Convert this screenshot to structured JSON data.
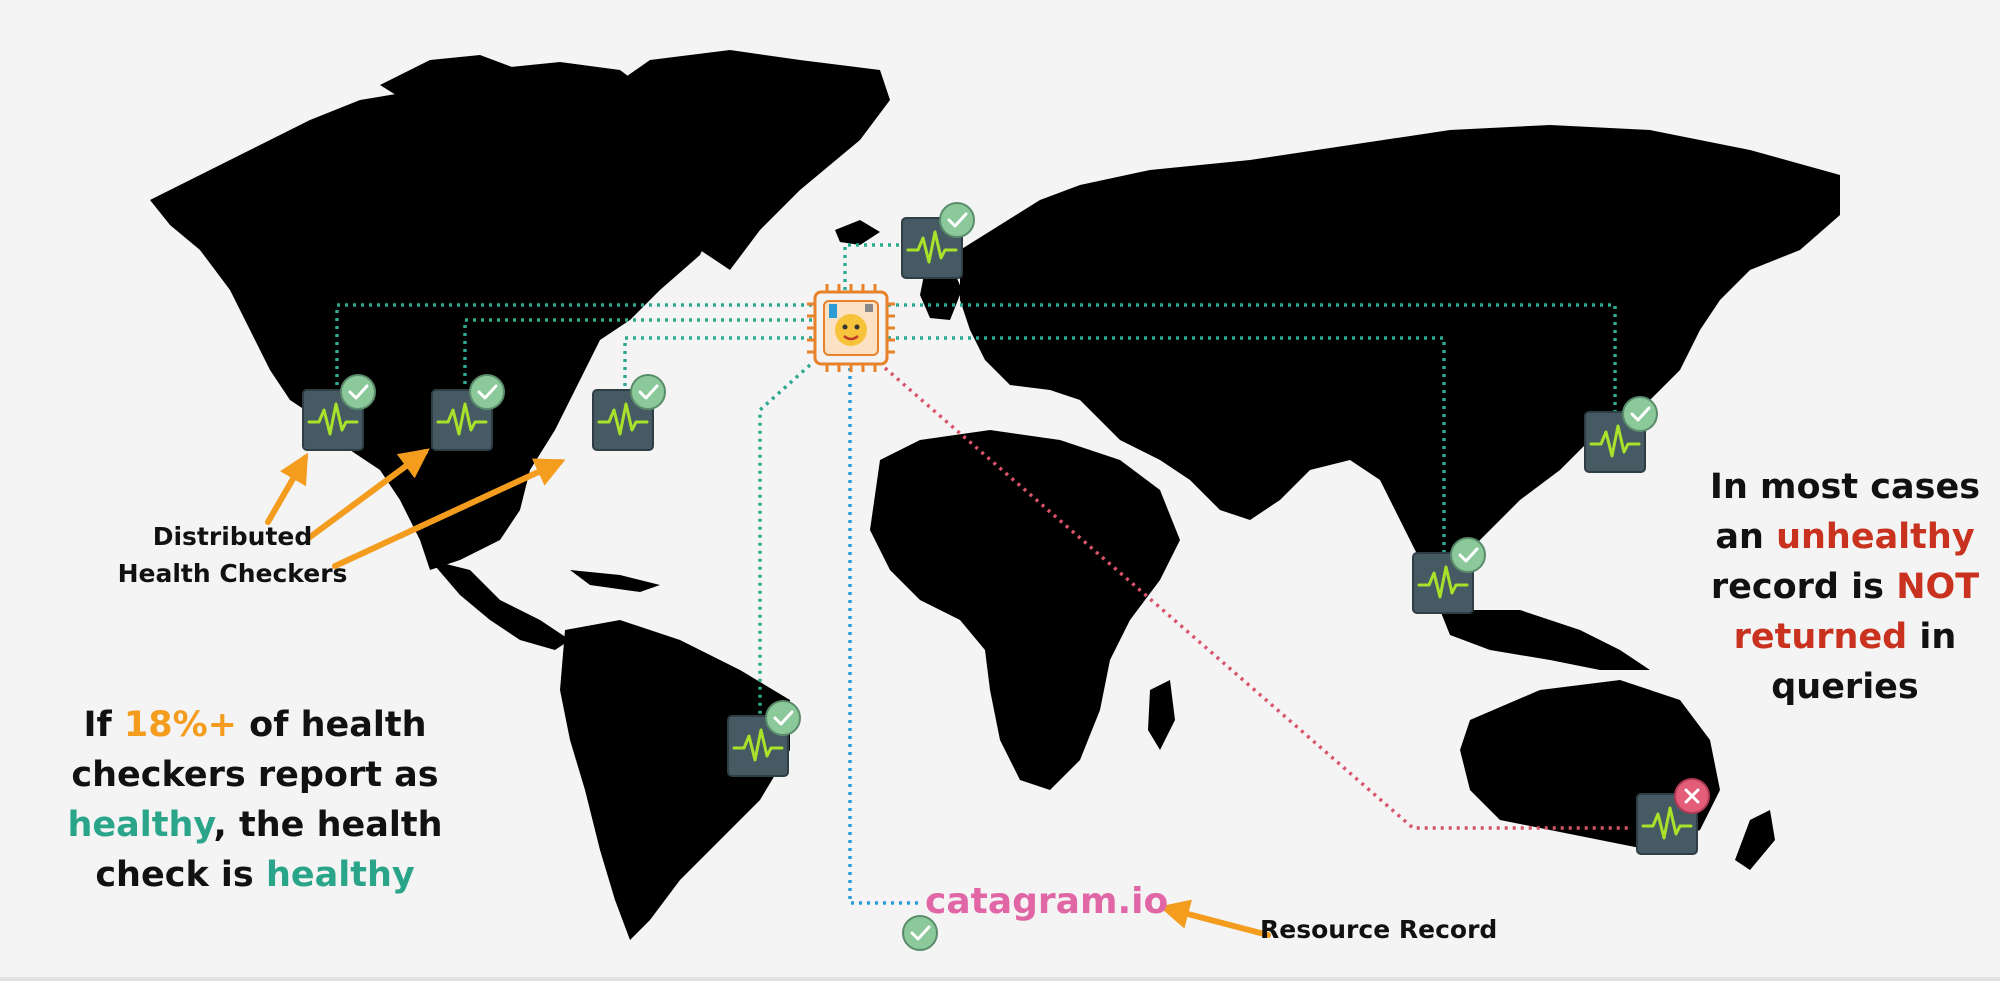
{
  "labels": {
    "distributed_line1": "Distributed",
    "distributed_line2": "Health Checkers",
    "resource_record": "Resource Record",
    "domain": "catagram.io"
  },
  "left_note": {
    "p1": "If ",
    "p2": "18%+",
    "p3": " of health checkers report as ",
    "p4": "healthy",
    "p5": ",  the health check is ",
    "p6": "healthy"
  },
  "right_note": {
    "p1": "In most cases an ",
    "p2": "unhealthy",
    "p3": " record is ",
    "p4": "NOT",
    "p5": " returned",
    "p6": " in queries"
  },
  "checkers": [
    {
      "id": "us-west",
      "status": "healthy"
    },
    {
      "id": "us-central",
      "status": "healthy"
    },
    {
      "id": "us-east",
      "status": "healthy"
    },
    {
      "id": "europe",
      "status": "healthy"
    },
    {
      "id": "brazil",
      "status": "healthy"
    },
    {
      "id": "japan",
      "status": "healthy"
    },
    {
      "id": "singapore",
      "status": "healthy"
    },
    {
      "id": "australia",
      "status": "unhealthy"
    }
  ],
  "colors": {
    "green_line": "#2ea88e",
    "blue_line": "#2d9bd6",
    "red_line": "#d9546a",
    "orange": "#f39c1e",
    "checker_bg": "#465a63",
    "pulse": "#a8e22a",
    "badge_ok": "#8bc99b",
    "badge_bad": "#e35c78",
    "green_text": "#2aa58a",
    "red_text": "#c8321e",
    "pink_text": "#e066a6"
  },
  "icons": {
    "checker": "health-checker-icon",
    "status_ok": "check-circle-icon",
    "status_bad": "x-circle-icon",
    "hub": "route53-chip-icon"
  }
}
